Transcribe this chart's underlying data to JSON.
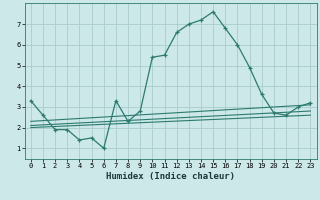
{
  "xlabel": "Humidex (Indice chaleur)",
  "bg_color": "#cce8e8",
  "grid_color": "#aacccc",
  "line_color": "#2d7a6e",
  "xlim": [
    -0.5,
    23.5
  ],
  "ylim": [
    0.5,
    8.0
  ],
  "xticks": [
    0,
    1,
    2,
    3,
    4,
    5,
    6,
    7,
    8,
    9,
    10,
    11,
    12,
    13,
    14,
    15,
    16,
    17,
    18,
    19,
    20,
    21,
    22,
    23
  ],
  "yticks": [
    1,
    2,
    3,
    4,
    5,
    6,
    7
  ],
  "series1_x": [
    0,
    1,
    2,
    3,
    4,
    5,
    6,
    7,
    8,
    9,
    10,
    11,
    12,
    13,
    14,
    15,
    16,
    17,
    18,
    19,
    20,
    21,
    22,
    23
  ],
  "series1_y": [
    3.3,
    2.6,
    1.9,
    1.9,
    1.4,
    1.5,
    1.0,
    3.3,
    2.3,
    2.8,
    5.4,
    5.5,
    6.6,
    7.0,
    7.2,
    7.6,
    6.8,
    6.0,
    4.9,
    3.6,
    2.7,
    2.6,
    3.0,
    3.2
  ],
  "series2_x": [
    0,
    23
  ],
  "series2_y": [
    2.0,
    2.6
  ],
  "series3_x": [
    0,
    23
  ],
  "series3_y": [
    2.1,
    2.8
  ],
  "series4_x": [
    0,
    23
  ],
  "series4_y": [
    2.3,
    3.1
  ]
}
